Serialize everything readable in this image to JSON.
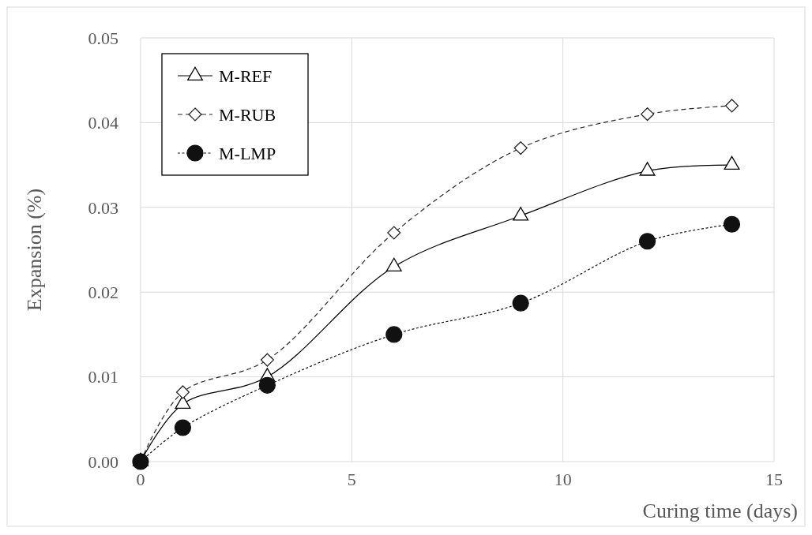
{
  "chart_data": {
    "type": "line",
    "xlabel": "Curing time (days)",
    "ylabel": "Expansion (%)",
    "x": [
      0,
      1,
      3,
      6,
      9,
      12,
      14
    ],
    "xlim": [
      0,
      15
    ],
    "xticks": [
      0,
      5,
      10,
      15
    ],
    "ylim": [
      0,
      0.05
    ],
    "yticks": [
      {
        "value": 0,
        "label": "0.00"
      },
      {
        "value": 0.01,
        "label": "0.01"
      },
      {
        "value": 0.02,
        "label": "0.02"
      },
      {
        "value": 0.03,
        "label": "0.03"
      },
      {
        "value": 0.04,
        "label": "0.04"
      },
      {
        "value": 0.05,
        "label": "0.05"
      }
    ],
    "grid": true,
    "legend": "top left",
    "series": [
      {
        "name": "M-REF",
        "color": "#000000",
        "marker": "triangle",
        "line_style": "solid",
        "values": [
          0,
          0.0068,
          0.01,
          0.023,
          0.029,
          0.0343,
          0.035
        ]
      },
      {
        "name": "M-RUB",
        "color": "#262626",
        "marker": "diamond",
        "line_style": "dashed",
        "values": [
          0,
          0.0082,
          0.012,
          0.027,
          0.037,
          0.041,
          0.042
        ]
      },
      {
        "name": "M-LMP",
        "color": "#111111",
        "marker": "circle",
        "line_style": "dotted",
        "values": [
          0,
          0.004,
          0.009,
          0.015,
          0.0187,
          0.026,
          0.028
        ]
      }
    ]
  }
}
